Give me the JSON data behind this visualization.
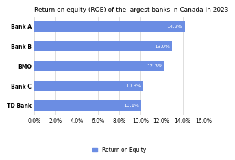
{
  "title": "Return on equity (ROE) of the largest banks in Canada in 2023",
  "categories": [
    "TD Bank",
    "Bank C",
    "BMO",
    "Bank B",
    "Bank A"
  ],
  "values": [
    10.1,
    10.3,
    12.3,
    13.0,
    14.2
  ],
  "labels": [
    "10.1%",
    "10.3%",
    "12.3%",
    "13.0%",
    "14.2%"
  ],
  "bar_color": "#6b8de3",
  "background_color": "#ffffff",
  "xlim": [
    0,
    16
  ],
  "xticks": [
    0,
    2,
    4,
    6,
    8,
    10,
    12,
    14,
    16
  ],
  "xtick_labels": [
    "0.0%",
    "2.0%",
    "4.0%",
    "6.0%",
    "8.0%",
    "10.0%",
    "12.0%",
    "14.0%",
    "16.0%"
  ],
  "legend_label": "Return on Equity",
  "legend_color": "#6b8de3",
  "title_fontsize": 6.5,
  "tick_fontsize": 5.5,
  "label_fontsize": 5.2,
  "grid_color": "#d8d8d8",
  "bar_height": 0.5
}
